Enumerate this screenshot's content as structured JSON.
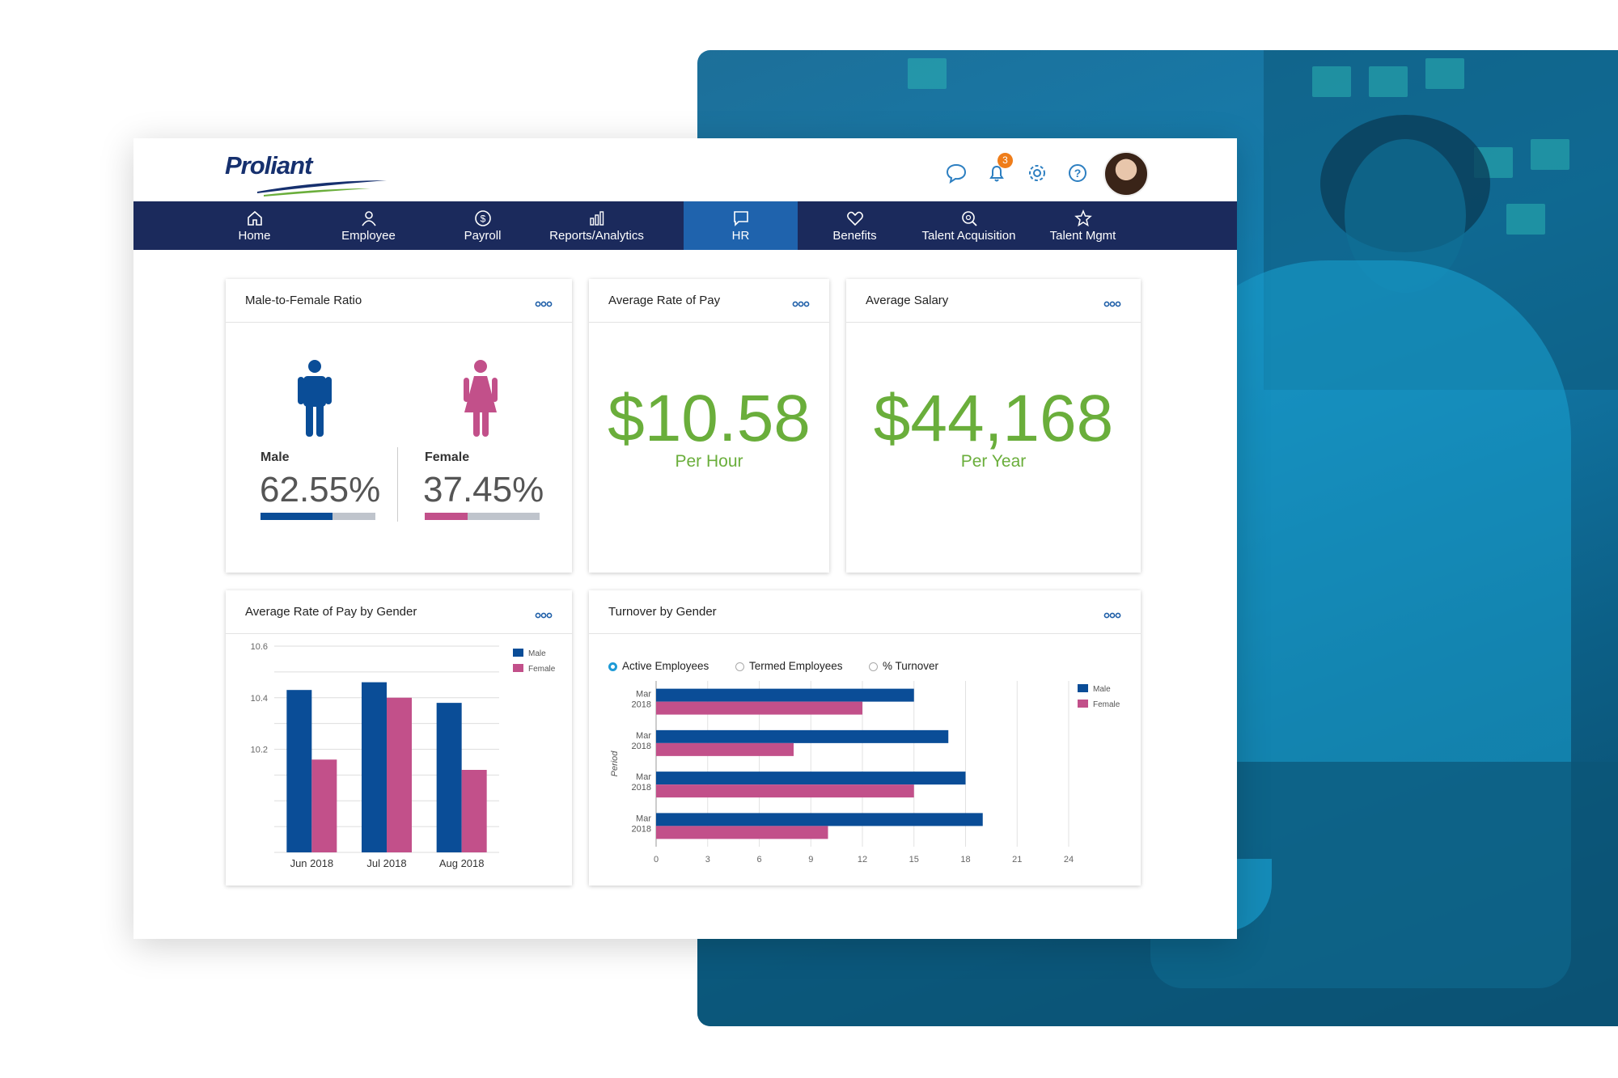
{
  "brand": {
    "name": "Proliant"
  },
  "topbar": {
    "notification_count": "3"
  },
  "nav": [
    {
      "label": "Home",
      "icon": "home-icon"
    },
    {
      "label": "Employee",
      "icon": "person-icon"
    },
    {
      "label": "Payroll",
      "icon": "dollar-icon"
    },
    {
      "label": "Reports/Analytics",
      "icon": "bar-chart-icon"
    },
    {
      "label": "HR",
      "icon": "chat-icon",
      "active": true
    },
    {
      "label": "Benefits",
      "icon": "heart-icon"
    },
    {
      "label": "Talent Acquisition",
      "icon": "search-icon"
    },
    {
      "label": "Talent Mgmt",
      "icon": "star-icon"
    }
  ],
  "ratio_card": {
    "title": "Male-to-Female Ratio",
    "male": {
      "label": "Male",
      "value": "62.55%",
      "fraction": 0.6255
    },
    "female": {
      "label": "Female",
      "value": "37.45%",
      "fraction": 0.3745
    }
  },
  "rate_card": {
    "title": "Average Rate of Pay",
    "value": "$10.58",
    "unit": "Per Hour"
  },
  "salary_card": {
    "title": "Average Salary",
    "value": "$44,168",
    "unit": "Per Year"
  },
  "pay_gender_card": {
    "title": "Average Rate of Pay by Gender"
  },
  "turnover_card": {
    "title": "Turnover by Gender",
    "options": [
      {
        "label": "Active Employees",
        "selected": true
      },
      {
        "label": "Termed Employees",
        "selected": false
      },
      {
        "label": "% Turnover",
        "selected": false
      }
    ]
  },
  "colors": {
    "navy": "#1b2a5c",
    "active_tab": "#1f63ad",
    "male": "#0a4d97",
    "female": "#c2508a",
    "green": "#6aae3b",
    "badge": "#ef7d1a"
  },
  "chart_data": [
    {
      "type": "bar",
      "categories": [
        "Jun 2018",
        "Jul 2018",
        "Aug 2018"
      ],
      "series": [
        {
          "name": "Male",
          "values": [
            10.43,
            10.46,
            10.38
          ]
        },
        {
          "name": "Female",
          "values": [
            10.16,
            10.4,
            10.12
          ]
        }
      ],
      "yticks": [
        "10.6",
        "10.4",
        "10.2"
      ],
      "ylim": [
        9.8,
        10.6
      ],
      "legend": "top-right"
    },
    {
      "type": "bar",
      "orientation": "horizontal",
      "categories": [
        "Mar 2018",
        "Mar 2018",
        "Mar 2018",
        "Mar 2018"
      ],
      "series": [
        {
          "name": "Male",
          "values": [
            15,
            17,
            18,
            19
          ]
        },
        {
          "name": "Female",
          "values": [
            12,
            8,
            15,
            10
          ]
        }
      ],
      "xticks": [
        "0",
        "3",
        "6",
        "9",
        "12",
        "15",
        "18",
        "21",
        "24"
      ],
      "xlim": [
        0,
        24
      ],
      "ylabel": "Period",
      "legend": "top-right"
    }
  ]
}
